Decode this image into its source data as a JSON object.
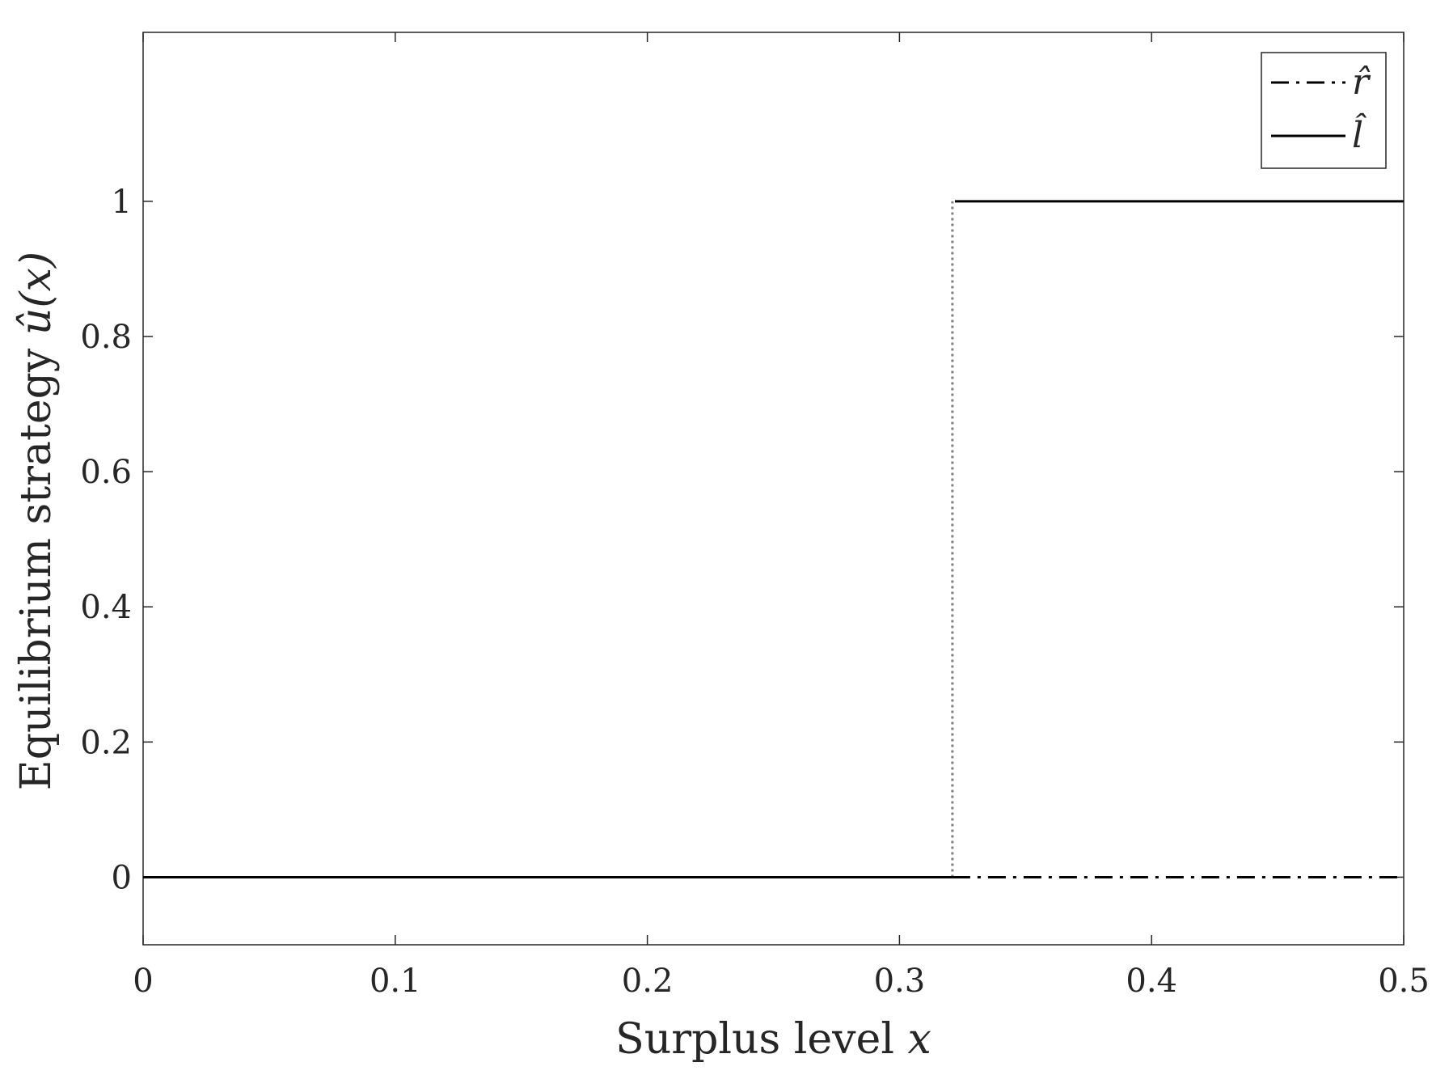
{
  "chart_data": {
    "type": "line",
    "xlabel": "Surplus level x",
    "xlabel_parts": {
      "text": "Surplus level ",
      "var": "x"
    },
    "ylabel": "Equilibrium strategy û(x)",
    "ylabel_parts": {
      "text": "Equilibrium strategy ",
      "var": "û(x)"
    },
    "xlim": [
      0,
      0.5
    ],
    "ylim": [
      -0.1,
      1.25
    ],
    "x_ticks": [
      0,
      0.1,
      0.2,
      0.3,
      0.4,
      0.5
    ],
    "x_tick_labels": [
      "0",
      "0.1",
      "0.2",
      "0.3",
      "0.4",
      "0.5"
    ],
    "y_ticks": [
      0,
      0.2,
      0.4,
      0.6,
      0.8,
      1
    ],
    "y_tick_labels": [
      "0",
      "0.2",
      "0.4",
      "0.6",
      "0.8",
      "1"
    ],
    "grid": false,
    "legend_position": "top-right",
    "series": [
      {
        "name": "r̂",
        "line_style": "dash-dot",
        "color": "#000000",
        "x": [
          0.321,
          0.5
        ],
        "y": [
          0,
          0
        ]
      },
      {
        "name": "l̂",
        "line_style": "solid",
        "color": "#000000",
        "segments": [
          {
            "x": [
              0,
              0.321
            ],
            "y": [
              0,
              0
            ]
          },
          {
            "x": [
              0.322,
              0.5
            ],
            "y": [
              1,
              1
            ]
          }
        ]
      }
    ],
    "switch_line": {
      "line_style": "dotted",
      "color": "#808080",
      "x": 0.321,
      "y": [
        0,
        1
      ]
    }
  }
}
